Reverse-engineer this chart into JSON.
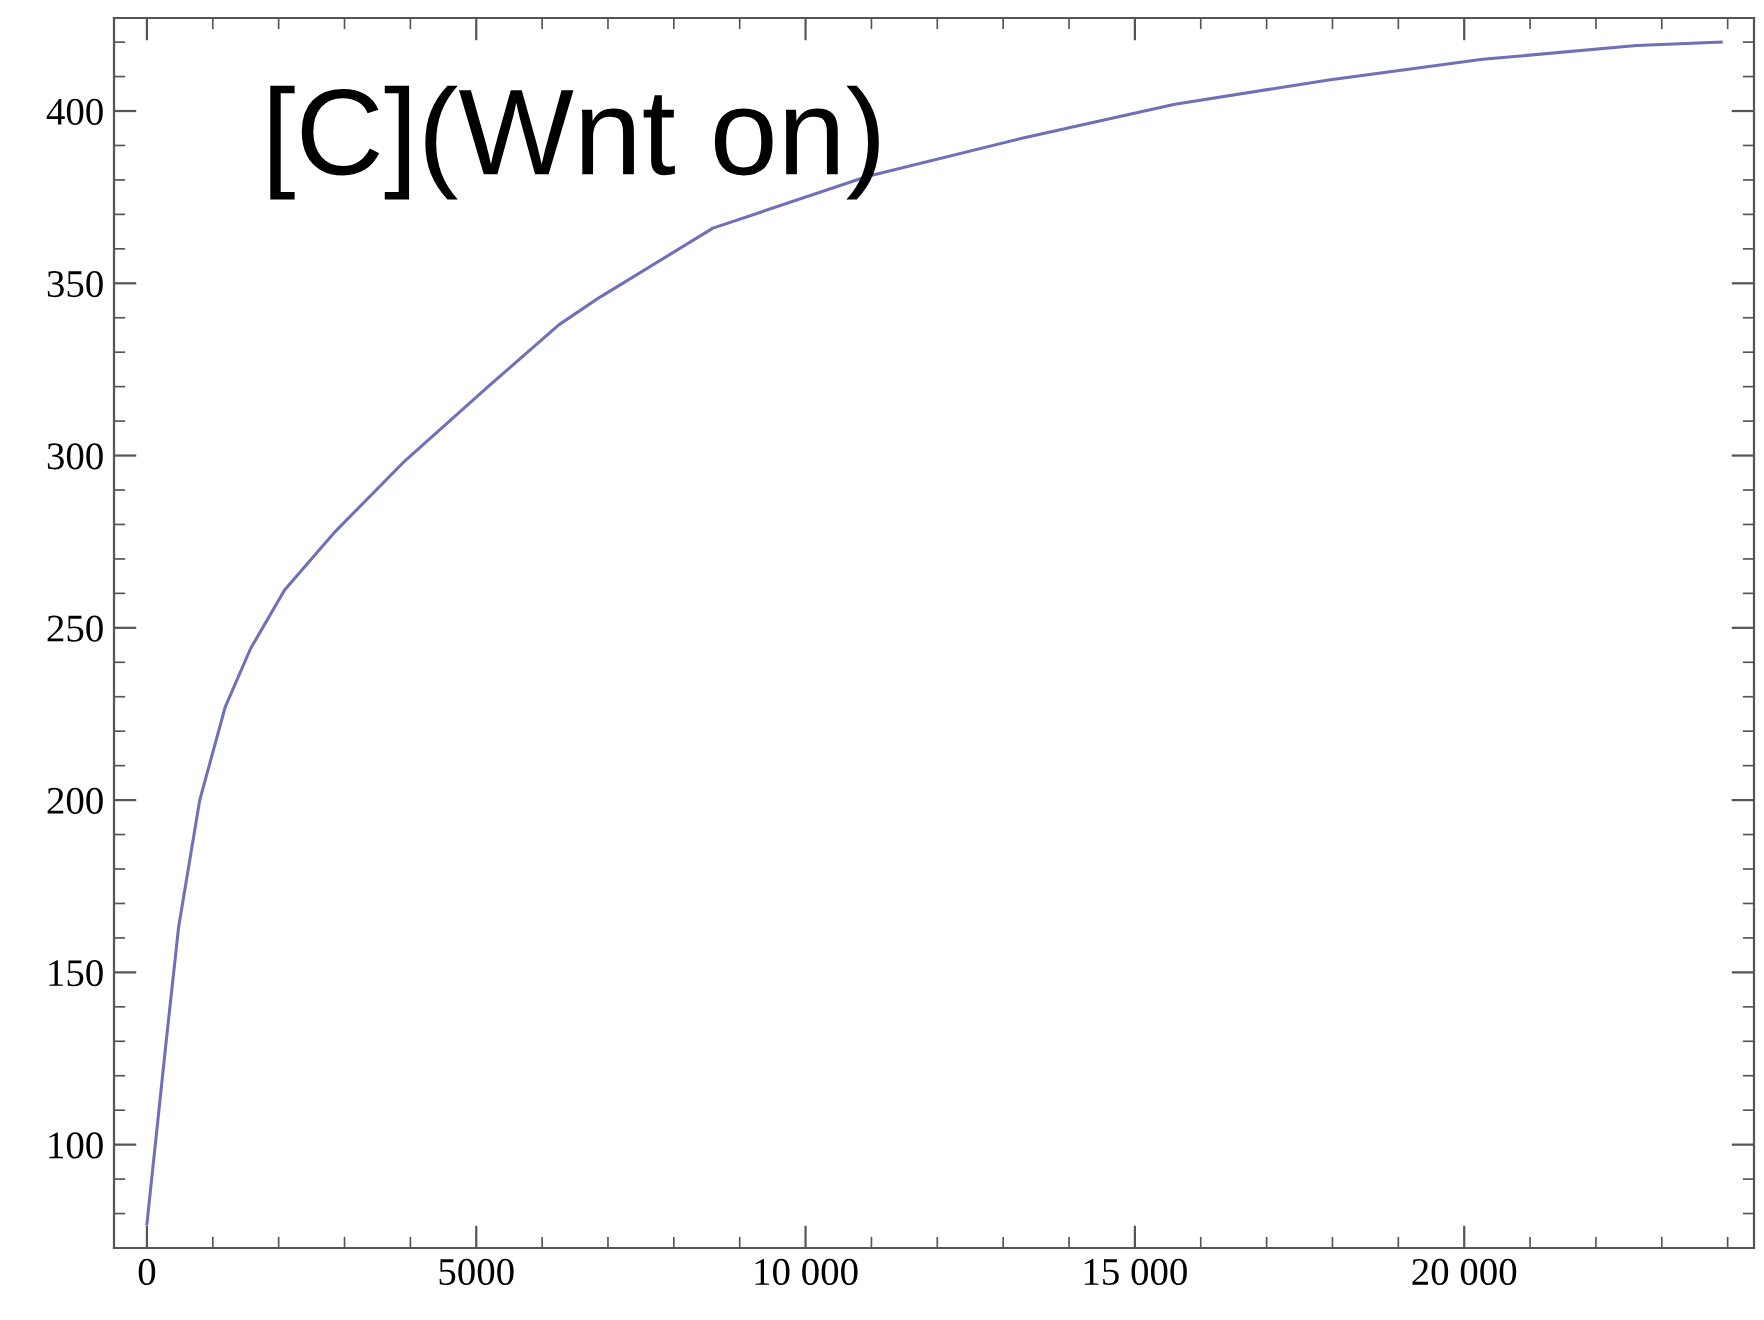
{
  "chart_data": {
    "type": "line",
    "annotations": [
      "[C](Wnt on)"
    ],
    "x": [
      0,
      287,
      480,
      802,
      1188,
      1574,
      2090,
      2862,
      3892,
      5180,
      6258,
      6880,
      8594,
      10933,
      13268,
      15607,
      17943,
      20280,
      22617,
      23902
    ],
    "series": [
      {
        "color": "#7070b8",
        "values": [
          77,
          129,
          163,
          200,
          227,
          244,
          261,
          278,
          298,
          320,
          338,
          346,
          366,
          381,
          392,
          402,
          409,
          415,
          419,
          420
        ]
      }
    ],
    "xlim": [
      -500,
      24400
    ],
    "ylim": [
      70,
      427
    ],
    "xticks": [
      0,
      5000,
      {
        "value": 10000,
        "label": "10 000"
      },
      {
        "value": 15000,
        "label": "15 000"
      },
      {
        "value": 20000,
        "label": "20 000"
      }
    ],
    "yticks": [
      100,
      150,
      200,
      250,
      300,
      350,
      400
    ],
    "grid": false,
    "legend": false,
    "marker": "none",
    "line_style": "solid"
  }
}
